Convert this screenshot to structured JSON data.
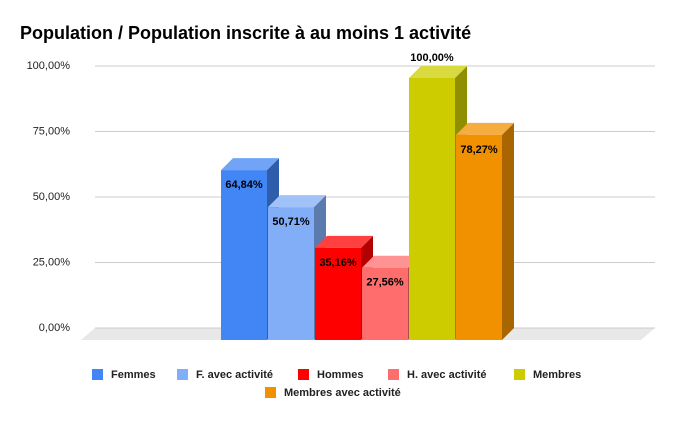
{
  "chart_data": {
    "type": "bar",
    "title": "Population / Population inscrite à au moins 1 activité",
    "categories": [
      null
    ],
    "series": [
      {
        "name": "Femmes",
        "color": "#4285f4",
        "values": [
          64.84
        ],
        "value_labels": [
          "64,84%"
        ]
      },
      {
        "name": "F. avec activité",
        "color": "#82aef7",
        "values": [
          50.71
        ],
        "value_labels": [
          "50,71%"
        ]
      },
      {
        "name": "Hommes",
        "color": "#ff0000",
        "values": [
          35.16
        ],
        "value_labels": [
          "35,16%"
        ]
      },
      {
        "name": "H. avec activité",
        "color": "#ff6d6d",
        "values": [
          27.56
        ],
        "value_labels": [
          "27,56%"
        ]
      },
      {
        "name": "Membres",
        "color": "#cccc00",
        "values": [
          100
        ],
        "value_labels": [
          "100,00%"
        ]
      },
      {
        "name": "Membres avec activité",
        "color": "#f29100",
        "values": [
          78.27
        ],
        "value_labels": [
          "78,27%"
        ]
      }
    ],
    "ylim": [
      0,
      100
    ],
    "yticks": [
      {
        "value": 0,
        "label": "0,00%"
      },
      {
        "value": 25,
        "label": "25,00%"
      },
      {
        "value": 50,
        "label": "50,00%"
      },
      {
        "value": 75,
        "label": "75,00%"
      },
      {
        "value": 100,
        "label": "100,00%"
      }
    ],
    "grid": true,
    "legend": "bottom"
  }
}
